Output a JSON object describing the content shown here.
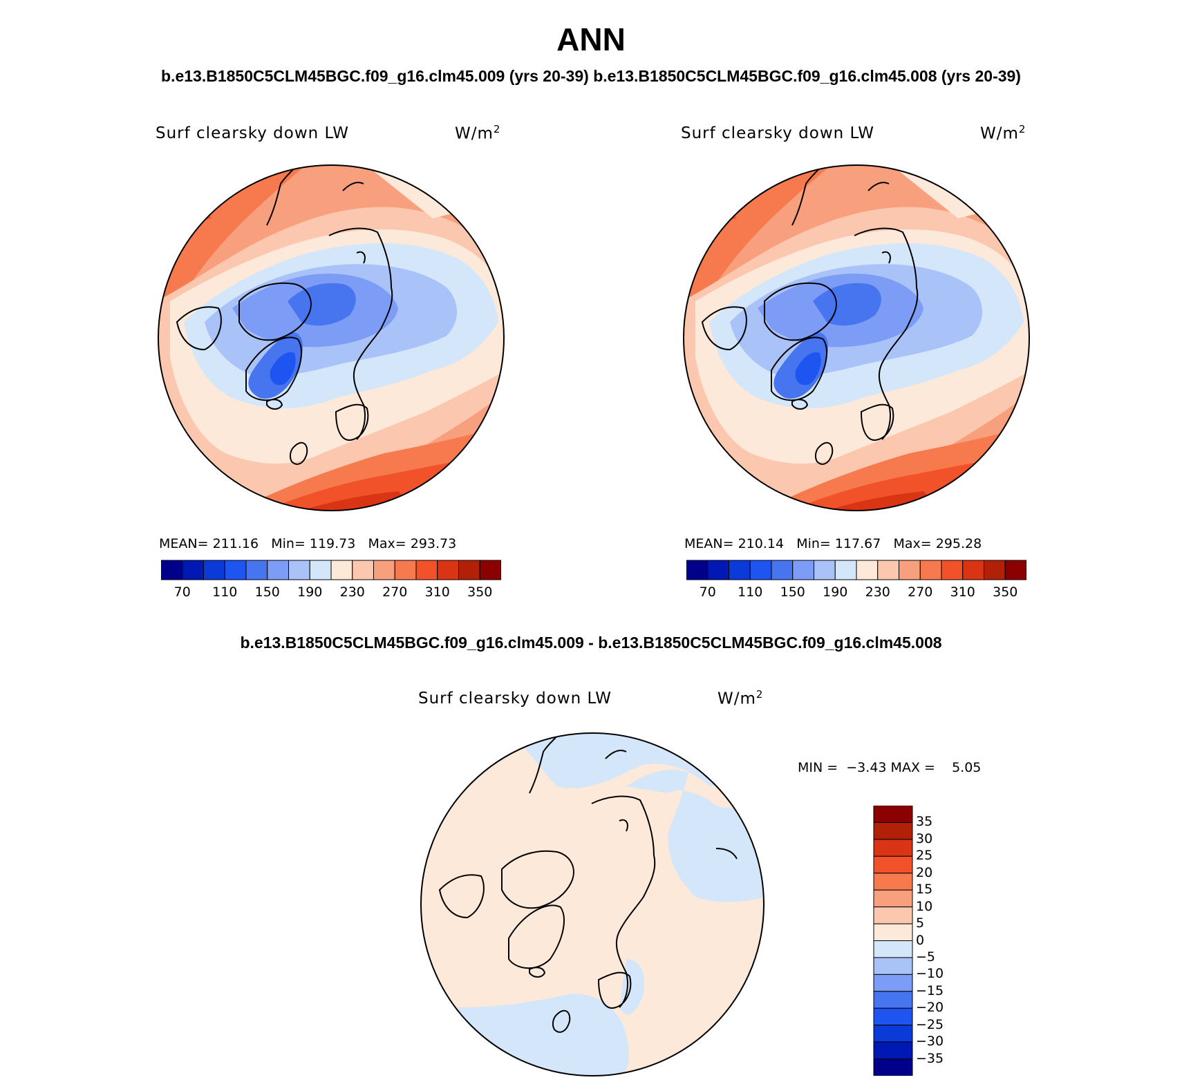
{
  "figure": {
    "title": "ANN",
    "subtitle_left": "b.e13.B1850C5CLM45BGC.f09_g16.clm45.009 (yrs 20-39)",
    "subtitle_right": "b.e13.B1850C5CLM45BGC.f09_g16.clm45.008 (yrs 20-39)",
    "diff_title": "b.e13.B1850C5CLM45BGC.f09_g16.clm45.009 - b.e13.B1850C5CLM45BGC.f09_g16.clm45.008"
  },
  "colors": {
    "blue": [
      "#00008b",
      "#0018b4",
      "#0a3ad8",
      "#1e54f0",
      "#4775f0",
      "#7c9cf5",
      "#a9c2f7",
      "#d4e6fa"
    ],
    "red": [
      "#fde9d9",
      "#fbc7ae",
      "#f8a07e",
      "#f77a4e",
      "#f2522a",
      "#d93414",
      "#b32008",
      "#8b0000"
    ],
    "land_line": "#000000"
  },
  "chart_data": [
    {
      "type": "map",
      "projection": "north-polar-stereographic",
      "variable": "Surf clearsky down LW",
      "unit_base": "W/m",
      "unit_exp": "2",
      "stats": {
        "mean_label": "MEAN=",
        "mean": "211.16",
        "min_label": "Min=",
        "min": "119.73",
        "max_label": "Max=",
        "max": "293.73"
      },
      "levels": [
        70,
        90,
        110,
        130,
        150,
        170,
        190,
        210,
        230,
        250,
        270,
        290,
        310,
        330,
        350
      ],
      "tick_labels": [
        "70",
        "110",
        "150",
        "190",
        "230",
        "270",
        "310",
        "350"
      ],
      "field_description": "low values over Greenland and the central Arctic, high values toward mid-latitudes"
    },
    {
      "type": "map",
      "projection": "north-polar-stereographic",
      "variable": "Surf clearsky down LW",
      "unit_base": "W/m",
      "unit_exp": "2",
      "stats": {
        "mean_label": "MEAN=",
        "mean": "210.14",
        "min_label": "Min=",
        "min": "117.67",
        "max_label": "Max=",
        "max": "295.28"
      },
      "levels": [
        70,
        90,
        110,
        130,
        150,
        170,
        190,
        210,
        230,
        250,
        270,
        290,
        310,
        330,
        350
      ],
      "tick_labels": [
        "70",
        "110",
        "150",
        "190",
        "230",
        "270",
        "310",
        "350"
      ]
    },
    {
      "type": "map",
      "projection": "north-polar-stereographic",
      "variable": "Surf clearsky down LW",
      "unit_base": "W/m",
      "unit_exp": "2",
      "stats": {
        "min_label": "MIN =",
        "min": "−3.43",
        "max_label": "MAX =",
        "max": "5.05"
      },
      "levels": [
        -35,
        -30,
        -25,
        -20,
        -15,
        -10,
        -5,
        0,
        5,
        10,
        15,
        20,
        25,
        30,
        35
      ],
      "tick_labels": [
        "35",
        "30",
        "25",
        "20",
        "15",
        "10",
        "5",
        "0",
        "−5",
        "−10",
        "−15",
        "−20",
        "−25",
        "−30",
        "−35"
      ]
    }
  ]
}
